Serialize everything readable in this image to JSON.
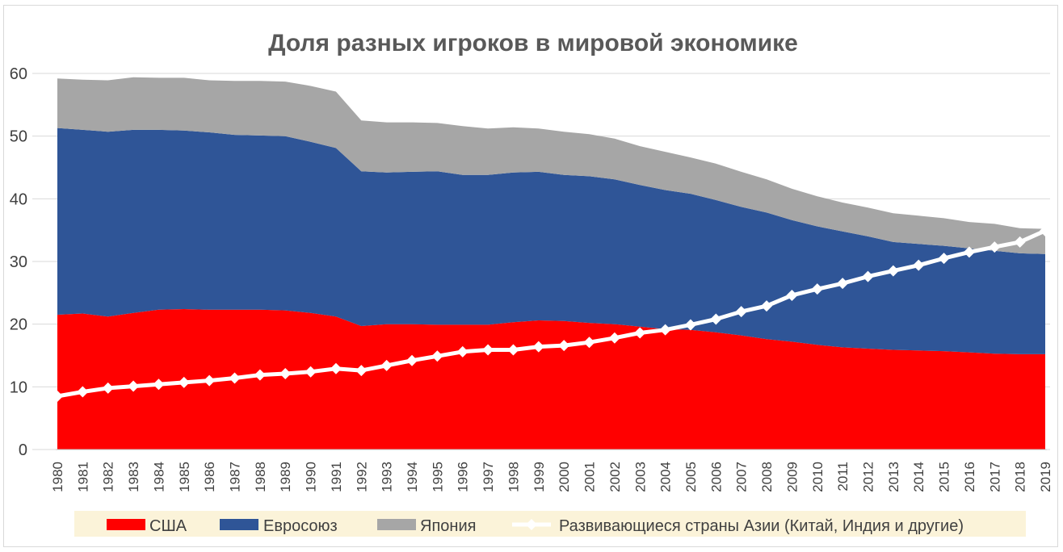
{
  "chart_data": {
    "type": "area",
    "title": "Доля разных игроков в мировой экономике",
    "xlabel": "",
    "ylabel": "",
    "ylim": [
      0,
      60
    ],
    "yticks": [
      0,
      10,
      20,
      30,
      40,
      50,
      60
    ],
    "grid": true,
    "legend_position": "bottom",
    "categories": [
      "1980",
      "1981",
      "1982",
      "1983",
      "1984",
      "1985",
      "1986",
      "1987",
      "1988",
      "1989",
      "1990",
      "1991",
      "1992",
      "1993",
      "1994",
      "1995",
      "1996",
      "1997",
      "1998",
      "1999",
      "2000",
      "2001",
      "2002",
      "2003",
      "2004",
      "2005",
      "2006",
      "2007",
      "2008",
      "2009",
      "2010",
      "2011",
      "2012",
      "2013",
      "2014",
      "2015",
      "2016",
      "2017",
      "2018",
      "2019"
    ],
    "stacked_series": [
      {
        "name": "США",
        "color": "#ff0000",
        "values": [
          21.5,
          21.7,
          21.2,
          21.8,
          22.3,
          22.4,
          22.3,
          22.3,
          22.3,
          22.2,
          21.8,
          21.2,
          19.7,
          20.0,
          20.0,
          19.9,
          19.9,
          19.9,
          20.3,
          20.6,
          20.5,
          20.2,
          20.0,
          19.6,
          19.2,
          19.1,
          18.7,
          18.2,
          17.6,
          17.2,
          16.7,
          16.3,
          16.1,
          15.9,
          15.8,
          15.7,
          15.5,
          15.3,
          15.2,
          15.2
        ]
      },
      {
        "name": "Евросоюз",
        "color": "#2f5597",
        "values": [
          29.8,
          29.3,
          29.5,
          29.2,
          28.7,
          28.5,
          28.3,
          27.9,
          27.8,
          27.8,
          27.3,
          26.9,
          24.7,
          24.2,
          24.3,
          24.5,
          23.9,
          23.9,
          23.9,
          23.7,
          23.3,
          23.4,
          23.1,
          22.6,
          22.2,
          21.7,
          21.1,
          20.5,
          20.2,
          19.4,
          18.9,
          18.5,
          17.9,
          17.2,
          17.0,
          16.8,
          16.6,
          16.4,
          16.1,
          16.0
        ]
      },
      {
        "name": "Япония",
        "color": "#a6a6a6",
        "values": [
          7.9,
          8.0,
          8.2,
          8.4,
          8.3,
          8.4,
          8.3,
          8.6,
          8.7,
          8.7,
          8.9,
          9.0,
          8.1,
          8.0,
          7.9,
          7.7,
          7.8,
          7.4,
          7.2,
          6.9,
          6.9,
          6.7,
          6.5,
          6.2,
          6.1,
          5.8,
          5.8,
          5.6,
          5.3,
          5.0,
          4.8,
          4.6,
          4.6,
          4.6,
          4.5,
          4.4,
          4.2,
          4.3,
          4.0,
          4.0
        ]
      }
    ],
    "line_series": {
      "name": "Развивающиеся страны Азии (Китай, Индия и другие)",
      "color": "#ffffff",
      "values": [
        8.5,
        9.2,
        9.8,
        10.1,
        10.4,
        10.7,
        11.0,
        11.4,
        11.9,
        12.1,
        12.4,
        12.9,
        12.6,
        13.4,
        14.2,
        14.9,
        15.6,
        15.9,
        15.9,
        16.4,
        16.6,
        17.1,
        17.8,
        18.6,
        19.1,
        19.9,
        20.8,
        22.0,
        22.9,
        24.6,
        25.6,
        26.5,
        27.6,
        28.5,
        29.4,
        30.5,
        31.5,
        32.3,
        33.1,
        34.9
      ]
    }
  }
}
